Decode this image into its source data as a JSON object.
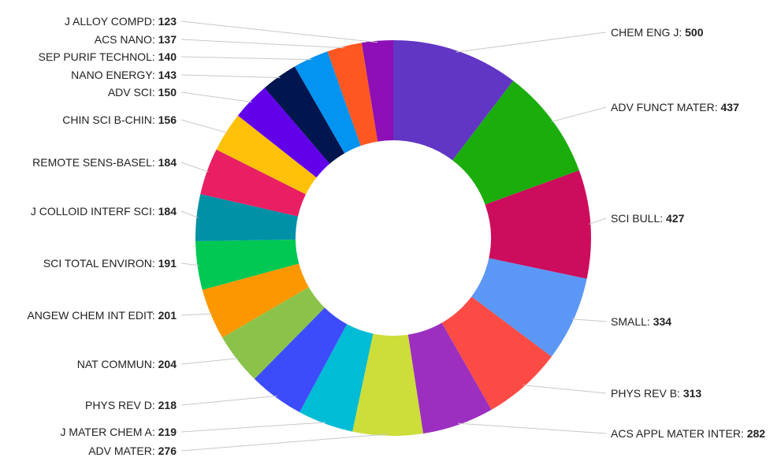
{
  "chart_data": {
    "type": "pie",
    "donut": true,
    "title": "",
    "categories": [
      "CHEM ENG J",
      "ADV FUNCT MATER",
      "SCI BULL",
      "SMALL",
      "PHYS REV B",
      "ACS APPL MATER INTER",
      "ADV MATER",
      "J MATER CHEM A",
      "PHYS REV D",
      "NAT COMMUN",
      "ANGEW CHEM INT EDIT",
      "SCI TOTAL ENVIRON",
      "J COLLOID INTERF SCI",
      "REMOTE SENS-BASEL",
      "CHIN SCI B-CHIN",
      "ADV SCI",
      "NANO ENERGY",
      "SEP PURIF TECHNOL",
      "ACS NANO",
      "J ALLOY COMPD"
    ],
    "values": [
      500,
      437,
      427,
      334,
      313,
      282,
      276,
      219,
      218,
      204,
      201,
      191,
      184,
      184,
      156,
      150,
      143,
      140,
      137,
      123
    ],
    "colors": [
      "#6236c4",
      "#1aad0c",
      "#cc0c5c",
      "#5b97f5",
      "#fc4b45",
      "#9c2fc0",
      "#cddd39",
      "#00bcd4",
      "#3d4cfb",
      "#8bc34a",
      "#fc9700",
      "#00c853",
      "#0091a6",
      "#e91e63",
      "#ffc107",
      "#6200ea",
      "#01154f",
      "#0393f0",
      "#fe5722",
      "#8d0fb5"
    ],
    "label_separator": ": ",
    "legend": "none"
  }
}
